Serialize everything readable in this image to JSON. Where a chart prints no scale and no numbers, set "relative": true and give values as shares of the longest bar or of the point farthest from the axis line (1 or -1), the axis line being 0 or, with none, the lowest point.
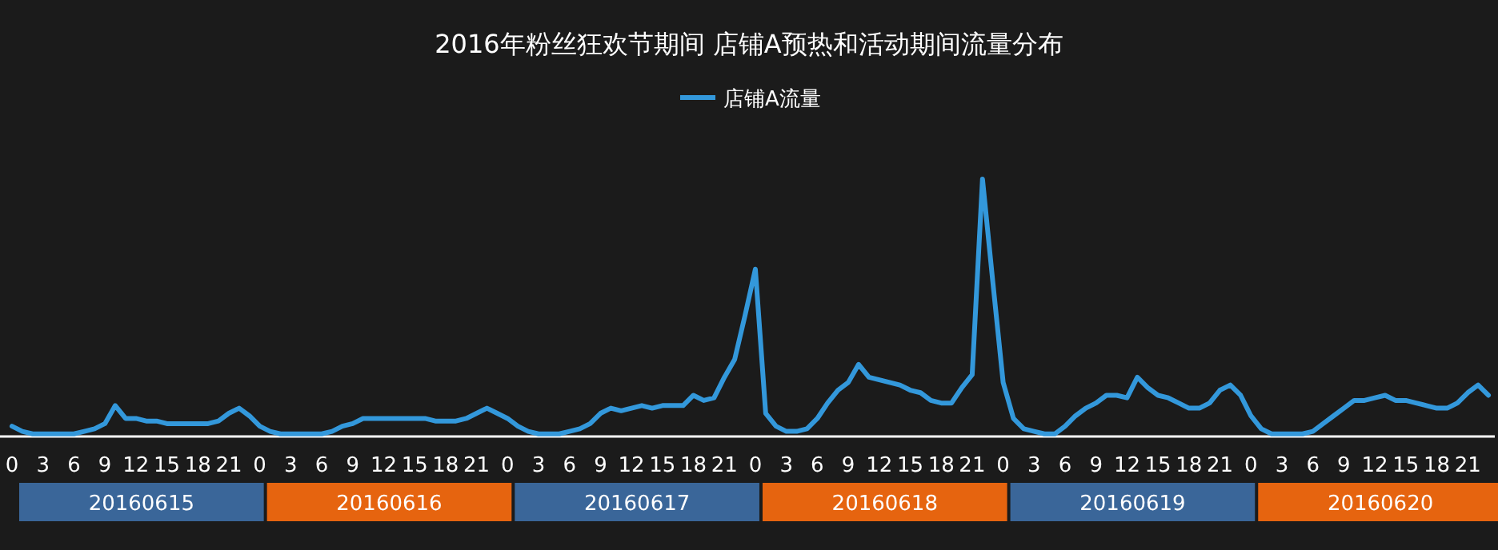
{
  "chart_data": {
    "type": "line",
    "title": "2016年粉丝狂欢节期间 店铺A预热和活动期间流量分布",
    "relative": true,
    "legend": "top",
    "marker": "none",
    "categories": [
      "0",
      null,
      null,
      "3",
      null,
      null,
      "6",
      null,
      null,
      "9",
      null,
      null,
      "12",
      null,
      null,
      "15",
      null,
      null,
      "18",
      null,
      null,
      "21",
      null,
      null,
      "0",
      null,
      null,
      "3",
      null,
      null,
      "6",
      null,
      null,
      "9",
      null,
      null,
      "12",
      null,
      null,
      "15",
      null,
      null,
      "18",
      null,
      null,
      "21",
      null,
      null,
      "0",
      null,
      null,
      "3",
      null,
      null,
      "6",
      null,
      null,
      "9",
      null,
      null,
      "12",
      null,
      null,
      "15",
      null,
      null,
      "18",
      null,
      null,
      "21",
      null,
      null,
      "0",
      null,
      null,
      "3",
      null,
      null,
      "6",
      null,
      null,
      "9",
      null,
      null,
      "12",
      null,
      null,
      "15",
      null,
      null,
      "18",
      null,
      null,
      "21",
      null,
      null,
      "0",
      null,
      null,
      "3",
      null,
      null,
      "6",
      null,
      null,
      "9",
      null,
      null,
      "12",
      null,
      null,
      "15",
      null,
      null,
      "18",
      null,
      null,
      "21",
      null,
      null,
      "0",
      null,
      null,
      "3",
      null,
      null,
      "6",
      null,
      null,
      "9",
      null,
      null,
      "12",
      null,
      null,
      "15",
      null,
      null,
      "18",
      null,
      null,
      "21",
      null,
      null
    ],
    "series": [
      {
        "name": "店铺A流量",
        "color": "#3398db",
        "values": [
          0.04,
          0.02,
          0.01,
          0.01,
          0.01,
          0.01,
          0.01,
          0.02,
          0.03,
          0.05,
          0.12,
          0.07,
          0.07,
          0.06,
          0.06,
          0.05,
          0.05,
          0.05,
          0.05,
          0.05,
          0.06,
          0.09,
          0.11,
          0.08,
          0.04,
          0.02,
          0.01,
          0.01,
          0.01,
          0.01,
          0.01,
          0.02,
          0.04,
          0.05,
          0.07,
          0.07,
          0.07,
          0.07,
          0.07,
          0.07,
          0.07,
          0.06,
          0.06,
          0.06,
          0.07,
          0.09,
          0.11,
          0.09,
          0.07,
          0.04,
          0.02,
          0.01,
          0.01,
          0.01,
          0.02,
          0.03,
          0.05,
          0.09,
          0.11,
          0.1,
          0.11,
          0.12,
          0.11,
          0.12,
          0.12,
          0.12,
          0.16,
          0.14,
          0.15,
          0.23,
          0.3,
          0.47,
          0.65,
          0.09,
          0.04,
          0.02,
          0.02,
          0.03,
          0.07,
          0.13,
          0.18,
          0.21,
          0.28,
          0.23,
          0.22,
          0.21,
          0.2,
          0.18,
          0.17,
          0.14,
          0.13,
          0.13,
          0.19,
          0.24,
          1,
          0.6,
          0.21,
          0.07,
          0.03,
          0.02,
          0.01,
          0.01,
          0.04,
          0.08,
          0.11,
          0.13,
          0.16,
          0.16,
          0.15,
          0.23,
          0.19,
          0.16,
          0.15,
          0.13,
          0.11,
          0.11,
          0.13,
          0.18,
          0.2,
          0.16,
          0.08,
          0.03,
          0.01,
          0.01,
          0.01,
          0.01,
          0.02,
          0.05,
          0.08,
          0.11,
          0.14,
          0.14,
          0.15,
          0.16,
          0.14,
          0.14,
          0.13,
          0.12,
          0.11,
          0.11,
          0.13,
          0.17,
          0.2,
          0.16
        ]
      }
    ],
    "annotations": [
      "20160615",
      "20160616",
      "20160617",
      "20160618",
      "20160619",
      "20160620"
    ]
  }
}
